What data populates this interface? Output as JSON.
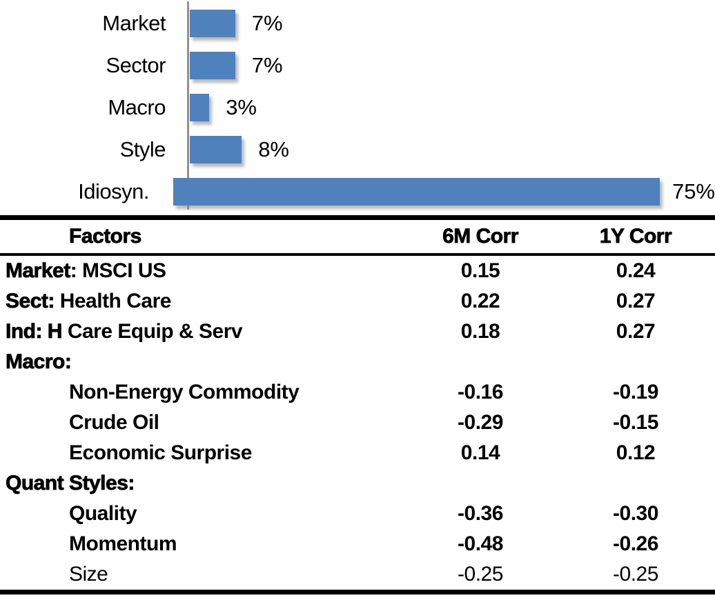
{
  "chart_data": {
    "type": "bar",
    "orientation": "horizontal",
    "title": "",
    "categories": [
      "Market",
      "Sector",
      "Macro",
      "Style",
      "Idiosyn."
    ],
    "values": [
      7,
      7,
      3,
      8,
      75
    ],
    "value_labels": [
      "7%",
      "7%",
      "3%",
      "8%",
      "75%"
    ],
    "bar_color": "#4F81BD",
    "axis_color": "#919191",
    "xlim": [
      0,
      81
    ],
    "grid": false,
    "legend": false
  },
  "table": {
    "headers": {
      "factors": "Factors",
      "col_6m": "6M Corr",
      "col_1y": "1Y Corr"
    },
    "rows": [
      {
        "prefix": "Market",
        "rest": ": MSCI US",
        "indent": false,
        "weight": "semibold",
        "v6m": "0.15",
        "v1y": "0.24"
      },
      {
        "prefix": "Sect:",
        "rest": " Health Care",
        "indent": false,
        "weight": "semibold",
        "v6m": "0.22",
        "v1y": "0.27"
      },
      {
        "prefix": "Ind: H",
        "rest": " Care Equip & Serv",
        "indent": false,
        "weight": "semibold",
        "v6m": "0.18",
        "v1y": "0.27"
      },
      {
        "prefix": "Macro:",
        "rest": "",
        "indent": false,
        "weight": "semibold",
        "v6m": "",
        "v1y": ""
      },
      {
        "prefix": "",
        "rest": "Non-Energy Commodity",
        "indent": true,
        "weight": "semibold",
        "v6m": "-0.16",
        "v1y": "-0.19"
      },
      {
        "prefix": "",
        "rest": "Crude Oil",
        "indent": true,
        "weight": "semibold",
        "v6m": "-0.29",
        "v1y": "-0.15"
      },
      {
        "prefix": "",
        "rest": "Economic Surprise",
        "indent": true,
        "weight": "semibold",
        "v6m": "0.14",
        "v1y": "0.12"
      },
      {
        "prefix": "Quant Styles:",
        "rest": "",
        "indent": false,
        "weight": "semibold",
        "v6m": "",
        "v1y": ""
      },
      {
        "prefix": "",
        "rest": "Quality",
        "indent": true,
        "weight": "semibold",
        "v6m": "-0.36",
        "v1y": "-0.30"
      },
      {
        "prefix": "",
        "rest": "Momentum",
        "indent": true,
        "weight": "semibold",
        "v6m": "-0.48",
        "v1y": "-0.26"
      },
      {
        "prefix": "",
        "rest": "Size",
        "indent": true,
        "weight": "regular",
        "v6m": "-0.25",
        "v1y": "-0.25"
      }
    ]
  }
}
